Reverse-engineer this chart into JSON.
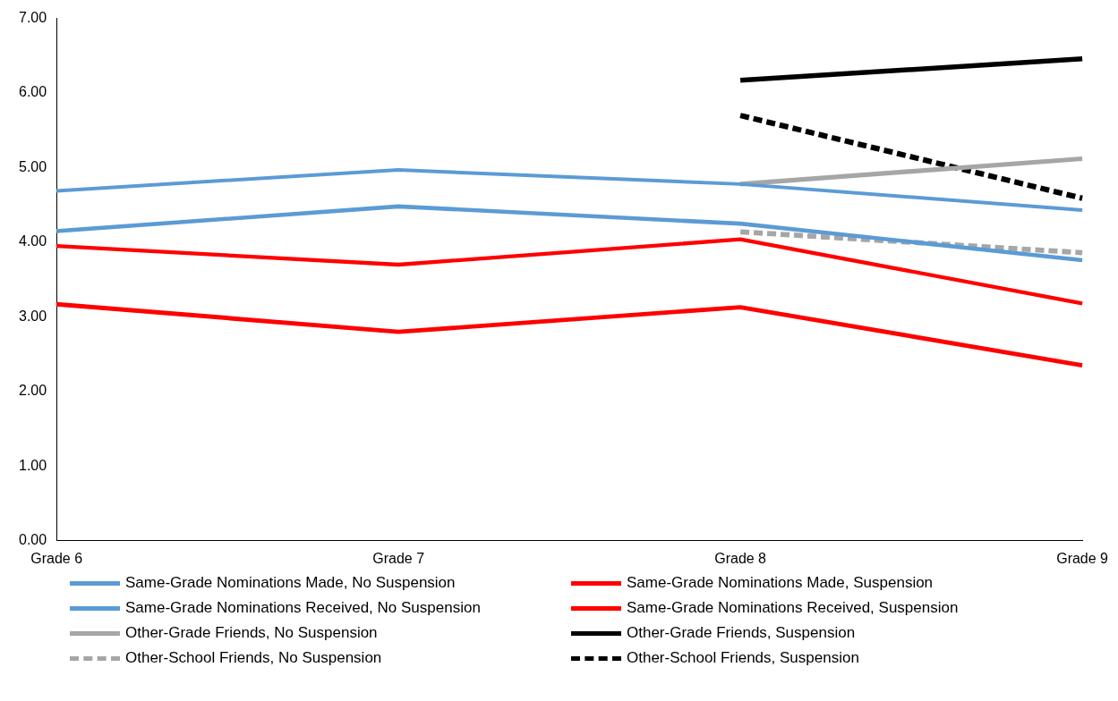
{
  "chart_data": {
    "type": "line",
    "categories": [
      "Grade 6",
      "Grade 7",
      "Grade 8",
      "Grade 9"
    ],
    "series": [
      {
        "name": "Same-Grade Nominations Made, No Suspension",
        "color": "#5b9bd5",
        "values": [
          4.69,
          4.97,
          4.78,
          4.43
        ]
      },
      {
        "name": "Same-Grade Nominations Made, Suspension",
        "color": "#ff0000",
        "values": [
          3.95,
          3.7,
          4.04,
          3.18
        ]
      },
      {
        "name": "Same-Grade Nominations Received, No Suspension",
        "color": "#5b9bd5",
        "values": [
          4.15,
          4.48,
          4.25,
          3.76
        ]
      },
      {
        "name": "Same-Grade Nominations Received, Suspension",
        "color": "#ff0000",
        "values": [
          3.17,
          2.8,
          3.13,
          2.35
        ]
      },
      {
        "name": "Other-Grade Friends, No Suspension",
        "color": "#a6a6a6",
        "values": [
          null,
          null,
          4.78,
          5.12
        ]
      },
      {
        "name": "Other-Grade Friends, Suspension",
        "color": "#000000",
        "values": [
          null,
          null,
          6.17,
          6.46
        ]
      },
      {
        "name": "Other-School Friends, No Suspension",
        "color": "#a6a6a6",
        "values": [
          null,
          null,
          4.14,
          3.86
        ],
        "line_style": "dashed"
      },
      {
        "name": "Other-School Friends, Suspension",
        "color": "#000000",
        "values": [
          null,
          null,
          5.7,
          4.59
        ],
        "line_style": "dashed"
      }
    ],
    "ylim": [
      0,
      7
    ],
    "yticks": [
      {
        "value": 0,
        "label": "0.00"
      },
      {
        "value": 1,
        "label": "1.00"
      },
      {
        "value": 2,
        "label": "2.00"
      },
      {
        "value": 3,
        "label": "3.00"
      },
      {
        "value": 4,
        "label": "4.00"
      },
      {
        "value": 5,
        "label": "5.00"
      },
      {
        "value": 6,
        "label": "6.00"
      },
      {
        "value": 7,
        "label": "7.00"
      }
    ],
    "grid": false,
    "legend": "bottom",
    "marker": "none",
    "line_style": "solid"
  }
}
